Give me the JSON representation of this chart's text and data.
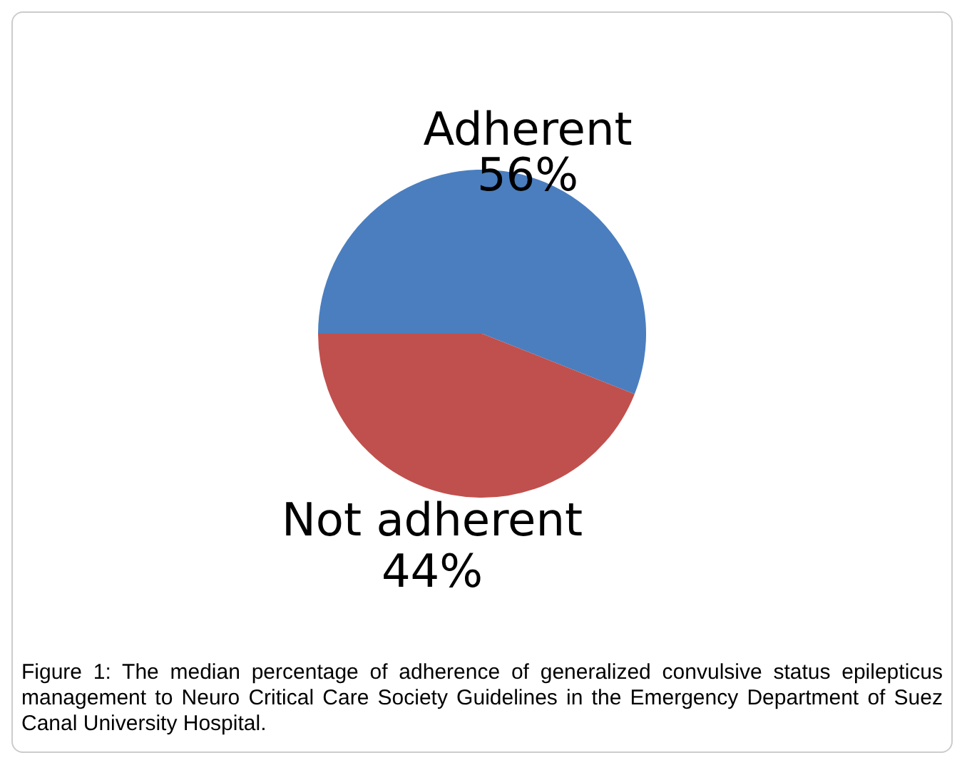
{
  "chart_data": {
    "type": "pie",
    "categories": [
      "Adherent",
      "Not adherent"
    ],
    "values": [
      56,
      44
    ],
    "value_labels": [
      "56%",
      "44%"
    ],
    "colors": [
      "#4a7ebf",
      "#c0504d"
    ],
    "annotations": [
      "Figure 1: The median percentage of adherence of generalized convulsive status epilepticus management to Neuro Critical Care Society Guidelines in the Emergency Department of Suez Canal University Hospital."
    ]
  }
}
